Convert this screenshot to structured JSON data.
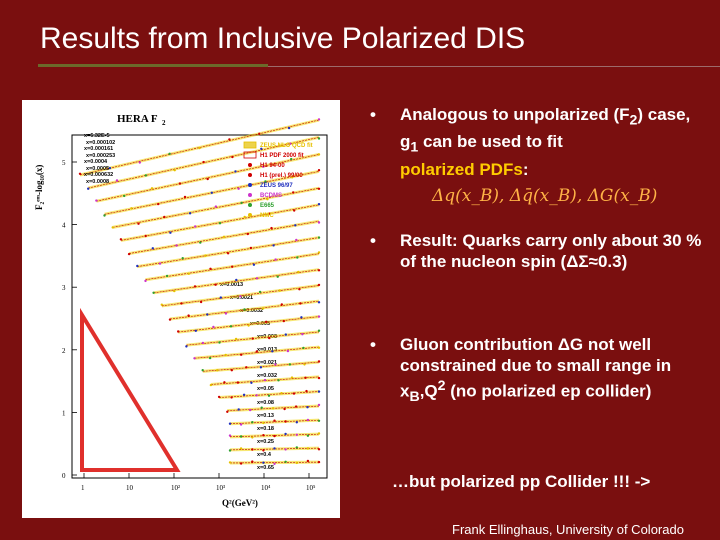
{
  "slide": {
    "title": "Results from Inclusive Polarized DIS",
    "colors": {
      "background": "#7a0f0f",
      "highlight": "#ffcc00",
      "formula": "#ffb347",
      "triangle": "#e0302c"
    }
  },
  "figure": {
    "heading": "HERA F",
    "heading_sub": "2",
    "ylabel": "F₂ᵉᵐ-log₁₀(x)",
    "xlabel": "Q²(GeV²)",
    "y_ticks": [
      "0",
      "1",
      "2",
      "3",
      "4",
      "5"
    ],
    "x_ticks": [
      "1",
      "10",
      "10²",
      "10³",
      "10⁴",
      "10⁵"
    ],
    "legend": [
      {
        "label": "ZEUS NLO QCD fit",
        "color": "#e6c000"
      },
      {
        "label": "H1 PDF 2000 fit",
        "color": "#d00000"
      },
      {
        "label": "H1 94-00",
        "color": "#d00000"
      },
      {
        "label": "H1 (prel.) 99/00",
        "color": "#d00000"
      },
      {
        "label": "ZEUS 96/97",
        "color": "#1f2fbf"
      },
      {
        "label": "BCDMS",
        "color": "#cc33cc"
      },
      {
        "label": "E665",
        "color": "#2fa02f"
      },
      {
        "label": "NMC",
        "color": "#e6c000"
      }
    ],
    "x_labels": [
      "x=6.32E-5",
      "x=0.000102",
      "x=0.000161",
      "x=0.000253",
      "x=0.0004",
      "x=0.0005",
      "x=0.000632",
      "x=0.0008",
      "x=0.0013",
      "x=0.0021",
      "x=0.0032",
      "x=0.005",
      "x=0.008",
      "x=0.013",
      "x=0.021",
      "x=0.032",
      "x=0.05",
      "x=0.08",
      "x=0.13",
      "x=0.18",
      "x=0.25",
      "x=0.4",
      "x=0.65"
    ]
  },
  "bullets": {
    "b1_pre": "Analogous to unpolarized (F",
    "b1_sub": "2",
    "b1_mid": ") case, g",
    "b1_sub2": "1",
    "b1_post": " can be used to fit",
    "b1_highlight": "polarized PDFs",
    "b1_colon": ":",
    "formula": "Δq(x_B), Δq̄(x_B), ΔG(x_B)",
    "b2": "Result: Quarks carry only about 30 % of the nucleon spin (ΔΣ≈0.3)",
    "b3_pre": "Gluon contribution ΔG not well constrained due to small range in x",
    "b3_sub": "B",
    "b3_mid": ",Q",
    "b3_sup": "2",
    "b3_post": " (no polarized ep collider)",
    "bullet_char": "•"
  },
  "footer_note": "…but polarized pp Collider !!! ->",
  "credit": "Frank Ellinghaus, University of Colorado"
}
